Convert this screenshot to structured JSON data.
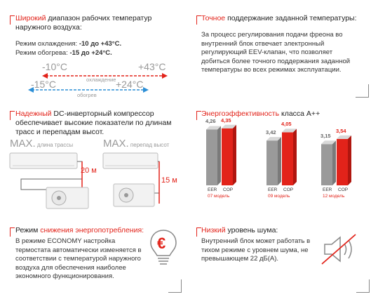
{
  "temp_block": {
    "title_hl": "Широкий",
    "title_rest": " диапазон рабочих температур наружного воздуха:",
    "cool_label": "Режим охлаждения: ",
    "cool_value": "-10 до +43°C.",
    "heat_label": "Режим обогрева: ",
    "heat_value": "-15 до +24°C.",
    "cool_min": "-10°C",
    "cool_max": "+43°C",
    "cool_caption": "охлаждение",
    "heat_min": "-15°C",
    "heat_max": "+24°C",
    "heat_caption": "обогрев"
  },
  "precise_block": {
    "title_hl": "Точное",
    "title_rest": " поддержание заданной температуры:",
    "body": "За процесс регулирования подачи фреона во внутренний блок отвечает электронный регулирующий EEV-клапан, что позволяет добиться более точного поддержания заданной температуры во всех режимах эксплуатации."
  },
  "compressor_block": {
    "title_hl": "Надежный",
    "title_rest": " DC-инверторный компрессор обеспечивает высокие показатели по длинам трасс и перепадам высот.",
    "max1": "MAX.",
    "max1_label": " длина трассы",
    "max2": "MAX.",
    "max2_label": " перепад высот",
    "len_value": "20 м",
    "height_value": "15 м"
  },
  "energy_block": {
    "title_hl": "Энергоэффективность",
    "title_rest": " класса A++"
  },
  "chart_data": {
    "type": "bar",
    "categories": [
      "07 модель",
      "09 модель",
      "12 модель"
    ],
    "series": [
      {
        "name": "EER",
        "values": [
          4.26,
          3.42,
          3.15
        ],
        "labels": [
          "4,26",
          "3,42",
          "3,15"
        ],
        "color": "#9a9a9a"
      },
      {
        "name": "COP",
        "values": [
          4.35,
          4.05,
          3.54
        ],
        "labels": [
          "4,35",
          "4,05",
          "3,54"
        ],
        "color": "#e2231a"
      }
    ],
    "title": "",
    "ylim": [
      0,
      4.5
    ]
  },
  "economy_block": {
    "title_plain": "Режим ",
    "title_hl": "снижения энергопотребления:",
    "body": "В режиме ECONOMY настройка термостата автоматически изменяется в соответствии с температурой наружного воздуха для обеспечения наиболее экономного функционирования.",
    "icon_symbol": "€"
  },
  "noise_block": {
    "title_hl": "Низкий",
    "title_rest": " уровень шума:",
    "body": "Внутренний блок может работать в тихом режиме с уровнем шума, не превышающем 22 дБ(А)."
  },
  "colors": {
    "accent": "#e2231a",
    "blue": "#2d8fd6",
    "grey": "#9a9a9a"
  }
}
